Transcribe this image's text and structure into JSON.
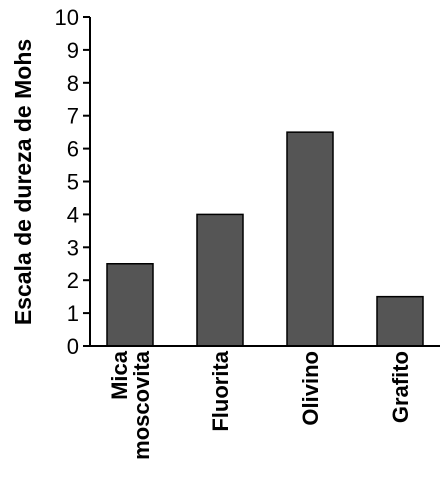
{
  "chart_data": {
    "type": "bar",
    "title": "",
    "xlabel": "",
    "ylabel": "Escala de dureza de Mohs",
    "ylim": [
      0,
      10
    ],
    "yticks": [
      "0",
      "1",
      "2",
      "3",
      "4",
      "5",
      "6",
      "7",
      "8",
      "9",
      "10"
    ],
    "categories": [
      [
        "Mica",
        "moscovita"
      ],
      [
        "Fluorita"
      ],
      [
        "Olivino"
      ],
      [
        "Grafito"
      ]
    ],
    "values": [
      2.5,
      4,
      6.5,
      1.5
    ],
    "bar_color": "#555555",
    "grid": false,
    "legend": "none"
  }
}
